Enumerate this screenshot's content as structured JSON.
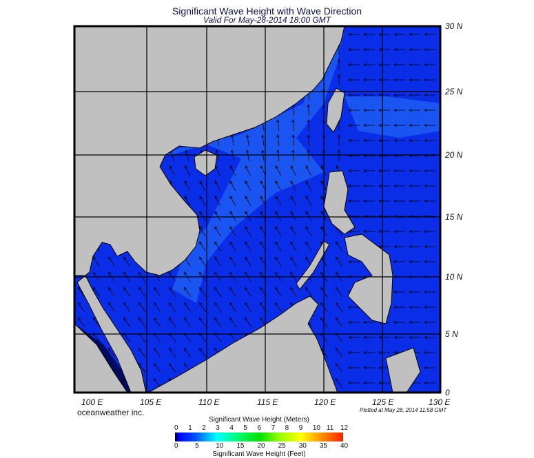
{
  "title": "Significant Wave Height with Wave Direction",
  "subtitle": "Valid For May-28-2014 18:00 GMT",
  "map": {
    "lon_labels": [
      "100 E",
      "105 E",
      "110 E",
      "115 E",
      "120 E",
      "125 E",
      "130 E"
    ],
    "lat_labels": [
      "30 N",
      "25 N",
      "20 N",
      "15 N",
      "10 N",
      "5 N",
      "0"
    ],
    "colors": {
      "ocean": "#0a2ee8",
      "ocean_light": "#1a55f2",
      "land": "#c0c0c0",
      "arrow": "#000000"
    }
  },
  "footer": {
    "brand": "oceanweather inc.",
    "plotted": "Plotted at May 28, 2014 11:58 GMT"
  },
  "colorbar": {
    "meters_label": "Significant Wave Height (Meters)",
    "feet_label": "Significant Wave Height (Feet)",
    "meters_ticks": [
      "0",
      "1",
      "2",
      "3",
      "4",
      "5",
      "6",
      "7",
      "8",
      "9",
      "10",
      "11",
      "12"
    ],
    "feet_ticks": [
      "0",
      "5",
      "10",
      "15",
      "20",
      "25",
      "30",
      "35",
      "40"
    ]
  }
}
